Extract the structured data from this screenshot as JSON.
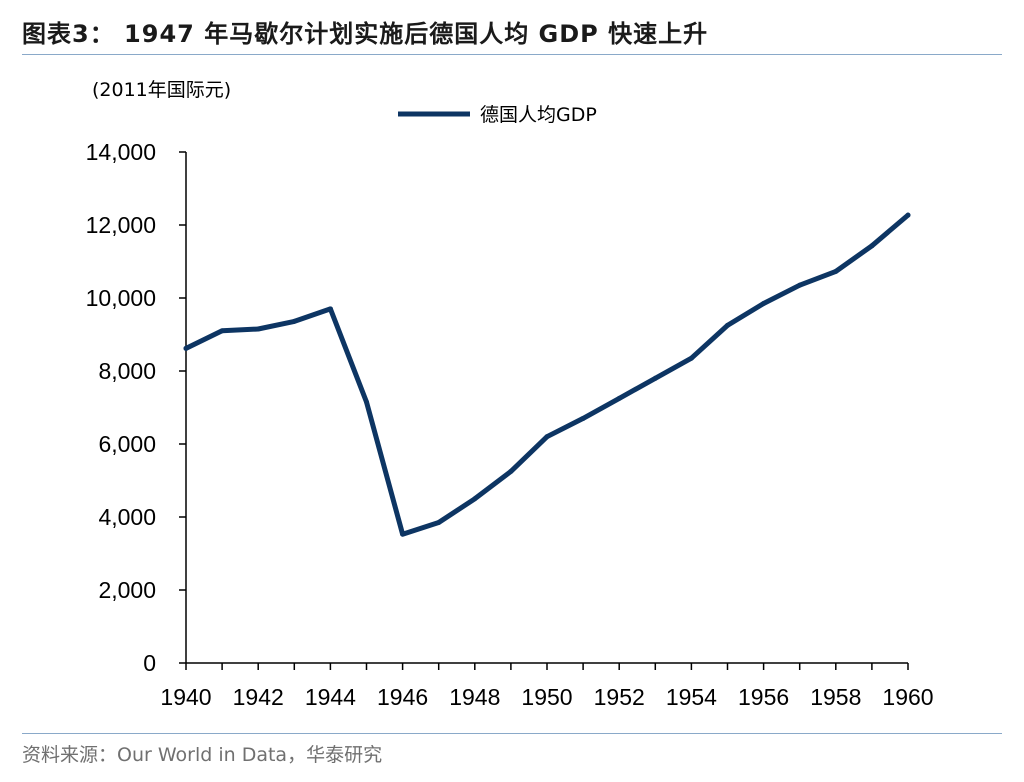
{
  "figure": {
    "title": "图表3： 1947 年马歇尔计划实施后德国人均 GDP 快速上升",
    "source": "资料来源：Our World in Data，华泰研究"
  },
  "chart_data": {
    "type": "line",
    "title": "",
    "ylabel": "(2011年国际元)",
    "xlabel": "",
    "x": [
      1940,
      1941,
      1942,
      1943,
      1944,
      1945,
      1946,
      1947,
      1948,
      1949,
      1950,
      1951,
      1952,
      1953,
      1954,
      1955,
      1956,
      1957,
      1958,
      1959,
      1960
    ],
    "series": [
      {
        "name": "德国人均GDP",
        "color": "#0d3563",
        "values": [
          8620,
          9100,
          9150,
          9360,
          9700,
          7150,
          3530,
          3850,
          4500,
          5250,
          6200,
          6700,
          7250,
          7800,
          8350,
          9250,
          9850,
          10350,
          10730,
          11430,
          12270
        ]
      }
    ],
    "xlim": [
      1940,
      1960
    ],
    "ylim": [
      0,
      14000
    ],
    "x_ticks": [
      "1940",
      "1942",
      "1944",
      "1946",
      "1948",
      "1950",
      "1952",
      "1954",
      "1956",
      "1958",
      "1960"
    ],
    "y_ticks": [
      "0",
      "2,000",
      "4,000",
      "6,000",
      "8,000",
      "10,000",
      "12,000",
      "14,000"
    ],
    "grid": false,
    "legend_position": "top-center"
  }
}
